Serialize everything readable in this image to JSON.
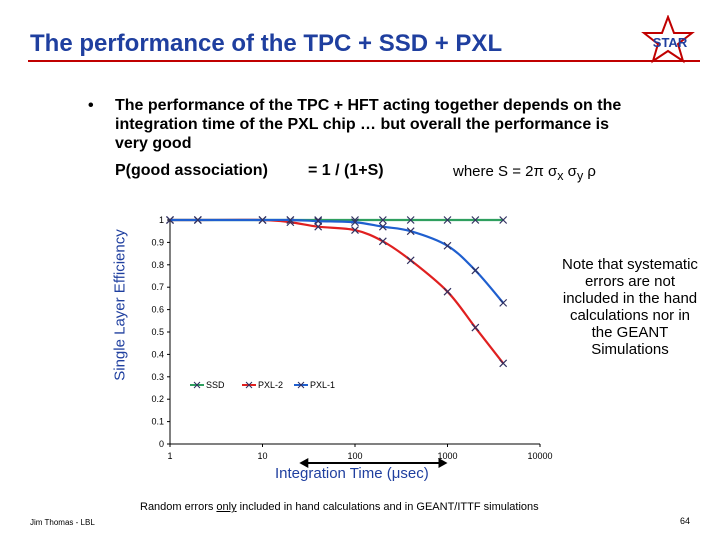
{
  "slide": {
    "title": "The performance of the TPC + SSD + PXL",
    "logo_text": "STAR",
    "bullet_marker": "•",
    "bullet": "The performance of the TPC + HFT acting together depends on the integration time of the PXL chip … but overall the performance is very good",
    "formula_lhs": "P(good association)",
    "formula_rhs": "= 1 / (1+S)",
    "where_prefix": "where S = 2π σ",
    "where_sub_x": "x",
    "where_mid": " σ",
    "where_sub_y": "y",
    "where_suffix": " ρ",
    "note": "Note that systematic errors are not included in the hand calculations nor in the GEANT Simulations",
    "footer_pre": "Random errors ",
    "footer_underlined": "only",
    "footer_post": " included in hand calculations and in GEANT/ITTF simulations",
    "author": "Jim Thomas - LBL",
    "page_number": "64"
  },
  "colors": {
    "title": "#1f3f9f",
    "rule": "#c00000",
    "ssd": "#2f9f5f",
    "pxl2": "#e02020",
    "pxl1": "#1f5fcf",
    "marker": "#303060"
  },
  "chart_data": {
    "type": "line",
    "xscale": "log",
    "xlabel": "Integration Time (μsec)",
    "ylabel": "Single Layer Efficiency",
    "xlim": [
      1,
      10000
    ],
    "ylim": [
      0,
      1
    ],
    "xticks": [
      "1",
      "10",
      "100",
      "1000",
      "10000"
    ],
    "yticks": [
      "0",
      "0.1",
      "0.2",
      "0.3",
      "0.4",
      "0.5",
      "0.6",
      "0.7",
      "0.8",
      "0.9",
      "1"
    ],
    "grid": false,
    "legend": "bottom-left",
    "annotation": "double-headed arrow spanning roughly 25 to 1000 μsec",
    "series": [
      {
        "name": "SSD",
        "x": [
          1,
          2,
          10,
          20,
          40,
          100,
          200,
          400,
          1000,
          2000,
          4000
        ],
        "y": [
          1,
          1,
          1,
          1,
          1,
          1,
          1,
          1,
          1,
          1,
          1
        ]
      },
      {
        "name": "PXL-2",
        "x": [
          1,
          2,
          10,
          20,
          40,
          100,
          200,
          400,
          1000,
          2000,
          4000
        ],
        "y": [
          1,
          1,
          1,
          0.99,
          0.97,
          0.955,
          0.905,
          0.82,
          0.68,
          0.52,
          0.36
        ]
      },
      {
        "name": "PXL-1",
        "x": [
          1,
          2,
          10,
          20,
          40,
          100,
          200,
          400,
          1000,
          2000,
          4000
        ],
        "y": [
          1,
          1,
          1,
          1,
          0.995,
          0.99,
          0.97,
          0.95,
          0.885,
          0.775,
          0.63
        ]
      }
    ]
  }
}
